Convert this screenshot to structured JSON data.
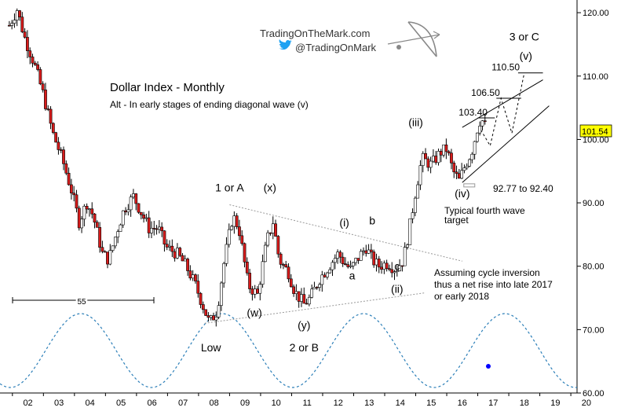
{
  "branding": {
    "site": "TradingOnTheMark.com",
    "twitter": "@TradingOnMark",
    "logo_icon": "archer-bow-icon",
    "bird_icon": "twitter-bird-icon",
    "bird_color": "#1da1f2"
  },
  "chart_data": {
    "type": "candlestick",
    "title": "Dollar Index - Monthly",
    "subtitle": "Alt - In early stages of ending diagonal wave (v)",
    "x_axis": {
      "labels": [
        "02",
        "03",
        "04",
        "05",
        "06",
        "07",
        "08",
        "09",
        "10",
        "11",
        "12",
        "13",
        "14",
        "15",
        "16",
        "17",
        "18",
        "19",
        "20"
      ],
      "range": [
        2001.6,
        2020.2
      ]
    },
    "y_axis": {
      "labels": [
        "60.00",
        "70.00",
        "80.00",
        "90.00",
        "100.00",
        "110.00",
        "120.00"
      ],
      "ticks": [
        60,
        70,
        80,
        90,
        100,
        110,
        120
      ],
      "range": [
        60,
        122
      ],
      "last_price": "101.54",
      "last_price_value": 101.54,
      "last_price_bg": "#ffff00"
    },
    "colors": {
      "up": "#ffffff",
      "down": "#d81b1b",
      "outline": "#000000",
      "cycle": "#2c7fb8",
      "now_dot": "#0000ff"
    },
    "anchors": [
      [
        2001.9,
        118
      ],
      [
        2002.15,
        120.5
      ],
      [
        2002.4,
        116
      ],
      [
        2002.7,
        112
      ],
      [
        2003.0,
        107
      ],
      [
        2003.3,
        101
      ],
      [
        2003.6,
        97
      ],
      [
        2003.9,
        92
      ],
      [
        2004.15,
        87
      ],
      [
        2004.4,
        90
      ],
      [
        2004.6,
        88
      ],
      [
        2004.9,
        82
      ],
      [
        2005.1,
        81
      ],
      [
        2005.4,
        86
      ],
      [
        2005.6,
        89
      ],
      [
        2005.9,
        91
      ],
      [
        2006.1,
        89
      ],
      [
        2006.4,
        86
      ],
      [
        2006.7,
        86
      ],
      [
        2006.95,
        83
      ],
      [
        2007.3,
        82
      ],
      [
        2007.6,
        80
      ],
      [
        2007.9,
        77
      ],
      [
        2008.2,
        73
      ],
      [
        2008.35,
        71
      ],
      [
        2008.6,
        73
      ],
      [
        2008.8,
        80
      ],
      [
        2009.1,
        88
      ],
      [
        2009.3,
        86
      ],
      [
        2009.6,
        77
      ],
      [
        2009.9,
        75.5
      ],
      [
        2010.2,
        84
      ],
      [
        2010.4,
        87
      ],
      [
        2010.6,
        81
      ],
      [
        2010.9,
        79
      ],
      [
        2011.1,
        76
      ],
      [
        2011.4,
        74
      ],
      [
        2011.6,
        75
      ],
      [
        2011.9,
        78
      ],
      [
        2012.2,
        80
      ],
      [
        2012.5,
        82
      ],
      [
        2012.7,
        80.5
      ],
      [
        2012.9,
        79.5
      ],
      [
        2013.1,
        81
      ],
      [
        2013.4,
        83
      ],
      [
        2013.6,
        81
      ],
      [
        2013.8,
        80
      ],
      [
        2014.1,
        80.5
      ],
      [
        2014.35,
        79.5
      ],
      [
        2014.6,
        81
      ],
      [
        2014.8,
        86
      ],
      [
        2015.0,
        92
      ],
      [
        2015.2,
        97
      ],
      [
        2015.5,
        96
      ],
      [
        2015.8,
        98
      ],
      [
        2016.0,
        98.5
      ],
      [
        2016.2,
        95
      ],
      [
        2016.4,
        93.5
      ],
      [
        2016.6,
        96
      ],
      [
        2016.8,
        98
      ],
      [
        2017.0,
        102
      ],
      [
        2017.1,
        103.4
      ],
      [
        2017.3,
        101.5
      ]
    ],
    "labels": [
      {
        "key": "w1a",
        "text": "1 or A",
        "x": 2009.0,
        "y": 91.8
      },
      {
        "key": "wx",
        "text": "(x)",
        "x": 2010.3,
        "y": 91.8
      },
      {
        "key": "wi",
        "text": "(i)",
        "x": 2012.7,
        "y": 86.3
      },
      {
        "key": "wb",
        "text": "b",
        "x": 2013.6,
        "y": 86.6
      },
      {
        "key": "wa",
        "text": "a",
        "x": 2012.95,
        "y": 77.9
      },
      {
        "key": "wc",
        "text": "c",
        "x": 2014.4,
        "y": 79.4
      },
      {
        "key": "wii",
        "text": "(ii)",
        "x": 2014.4,
        "y": 75.8
      },
      {
        "key": "ww",
        "text": "(w)",
        "x": 2009.8,
        "y": 72.1
      },
      {
        "key": "wy",
        "text": "(y)",
        "x": 2011.4,
        "y": 70.1
      },
      {
        "key": "w2b",
        "text": "2 or B",
        "x": 2011.4,
        "y": 66.6
      },
      {
        "key": "low",
        "text": "Low",
        "x": 2008.4,
        "y": 66.6
      },
      {
        "key": "wiii",
        "text": "(iii)",
        "x": 2015.0,
        "y": 102.1
      },
      {
        "key": "wiv",
        "text": "(iv)",
        "x": 2016.5,
        "y": 90.9
      },
      {
        "key": "w3c",
        "text": "3 or C",
        "x": 2018.5,
        "y": 115.6
      },
      {
        "key": "wv",
        "text": "(v)",
        "x": 2018.55,
        "y": 112.6
      }
    ],
    "annotations": {
      "target_1105": "110.50",
      "target_1065": "106.50",
      "target_1034": "103.40",
      "range_text": "92.77 to 92.40",
      "fourth_wave_1": "Typical fourth wave",
      "fourth_wave_2": "target",
      "cycle_1": "Assuming cycle inversion",
      "cycle_2": "thus a net rise into late 2017",
      "cycle_3": "or early 2018",
      "cycle_length": "55"
    },
    "grid": false
  }
}
